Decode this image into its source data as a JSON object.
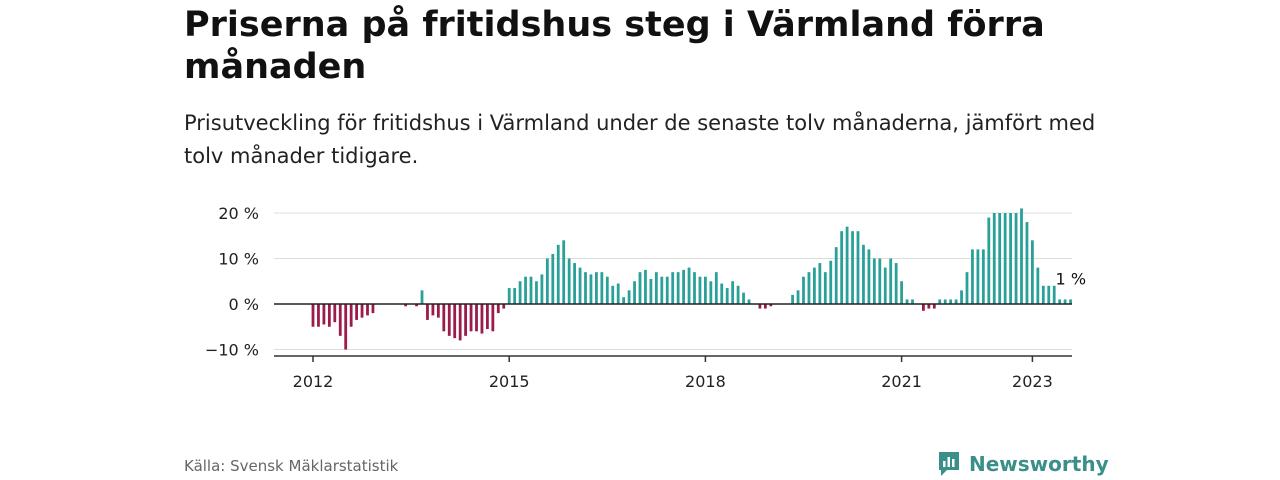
{
  "title": "Priserna på fritidshus steg i Värmland förra månaden",
  "subtitle": "Prisutveckling för fritidshus i Värmland under de senaste tolv månaderna, jämfört med tolv månader tidigare.",
  "source": "Källa: Svensk Mäklarstatistik",
  "brand": "Newsworthy",
  "colors": {
    "positive": "#2aa198",
    "negative": "#9b1b4b",
    "grid": "#dddddd",
    "axis": "#333333",
    "brand": "#3a8f8a"
  },
  "chart_data": {
    "type": "bar",
    "title": "Priserna på fritidshus steg i Värmland förra månaden",
    "x_start": "2012-01",
    "x_ticks": [
      "2012",
      "2015",
      "2018",
      "2021",
      "2023"
    ],
    "y_ticks": [
      "20 %",
      "10 %",
      "0 %",
      "−10 %"
    ],
    "y_tick_values": [
      20,
      10,
      0,
      -10
    ],
    "ylim": [
      -11,
      21
    ],
    "grid": true,
    "last_value_label": "1 %",
    "values": [
      -5,
      -5,
      -4.5,
      -5,
      -4,
      -7,
      -10,
      -5,
      -3.5,
      -3,
      -2.5,
      -2,
      0,
      0,
      0,
      0,
      0,
      -0.5,
      0,
      -0.5,
      3,
      -3.5,
      -2.5,
      -3,
      -6,
      -7,
      -7.5,
      -8,
      -7,
      -6,
      -6,
      -6.5,
      -5.5,
      -6,
      -2,
      -1,
      3.5,
      3.5,
      5,
      6,
      6,
      5,
      6.5,
      10,
      11,
      13,
      14,
      10,
      9,
      8,
      7,
      6.5,
      7,
      7,
      6,
      4,
      4.5,
      1.5,
      3,
      5,
      7,
      7.5,
      5.5,
      7,
      6,
      6,
      7,
      7,
      7.5,
      8,
      7,
      6,
      6,
      5,
      7,
      4.5,
      3.5,
      5,
      4,
      2.5,
      1,
      0,
      -1,
      -1,
      -0.5,
      0,
      0,
      0,
      2,
      3,
      6,
      7,
      8,
      9,
      7,
      9.5,
      12.5,
      16,
      17,
      16,
      16,
      13,
      12,
      10,
      10,
      8,
      10,
      9,
      5,
      1,
      1,
      0,
      -1.5,
      -1,
      -1,
      1,
      1,
      1,
      1,
      3,
      7,
      12,
      12,
      12,
      19,
      20,
      20,
      20,
      20,
      20,
      21,
      18,
      14,
      8,
      4,
      4,
      4,
      1,
      1,
      1
    ]
  }
}
